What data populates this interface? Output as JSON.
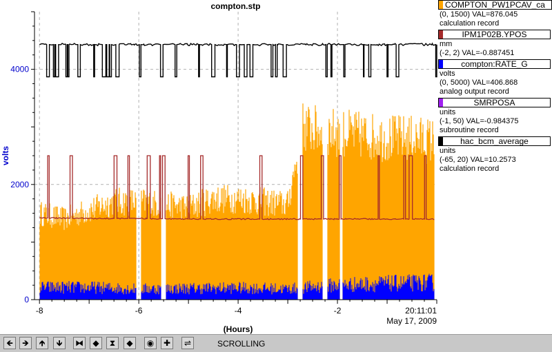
{
  "chart_data": {
    "type": "line",
    "title": "compton.stp",
    "xlabel": "(Hours)",
    "ylabel": "volts",
    "xlim": [
      -8.1,
      -0.0
    ],
    "ylim": [
      0,
      5000
    ],
    "x_ticks": [
      "-8",
      "-6",
      "-4",
      "-2"
    ],
    "y_ticks": [
      "0",
      "2000",
      "4000"
    ],
    "time_label": "20:11:01",
    "date_label": "May 17, 2009",
    "grid": true,
    "series": [
      {
        "name": "hac_bcm_average",
        "color": "#000000",
        "baseline": 4430,
        "low": 3870,
        "x": [
          -8.0,
          -7.5,
          -7.0,
          -6.5,
          -6.0,
          -5.5,
          -5.0,
          -4.5,
          -4.0,
          -3.5,
          -3.0,
          -2.5,
          -2.0,
          -1.5,
          -1.0,
          -0.5,
          -0.05
        ],
        "values": [
          4430,
          4430,
          4430,
          4430,
          4430,
          4430,
          4430,
          4430,
          4430,
          4430,
          4430,
          4430,
          4430,
          4430,
          4430,
          4430,
          4430
        ]
      },
      {
        "name": "IPM1P02B.YPOS",
        "color": "#a52a2a",
        "baseline": 1400,
        "high": 2500,
        "x": [
          -8.0,
          -7.0,
          -6.0,
          -5.0,
          -4.0,
          -3.0,
          -2.0,
          -1.0,
          -0.05
        ],
        "values": [
          1420,
          1410,
          1410,
          1400,
          1400,
          1400,
          1400,
          1400,
          1400
        ]
      },
      {
        "name": "COMPTON_PW1PCAV_ca",
        "color": "#ffa500",
        "x": [
          -8.0,
          -7.5,
          -7.0,
          -6.5,
          -6.0,
          -5.5,
          -5.0,
          -4.5,
          -4.0,
          -3.5,
          -3.0,
          -2.7,
          -2.5,
          -2.0,
          -1.5,
          -1.0,
          -0.5,
          -0.05
        ],
        "values": [
          1500,
          1400,
          1550,
          1700,
          1700,
          1650,
          1600,
          1750,
          1750,
          1700,
          1650,
          3000,
          2950,
          2900,
          2850,
          2800,
          2800,
          2750
        ]
      },
      {
        "name": "compton:RATE_G",
        "color": "#0000ff",
        "x": [
          -8.0,
          -7.0,
          -6.0,
          -5.0,
          -4.0,
          -3.0,
          -2.0,
          -1.0,
          -0.05
        ],
        "values": [
          250,
          250,
          220,
          230,
          240,
          220,
          300,
          330,
          350
        ]
      }
    ],
    "gaps": [
      [
        -6.05,
        -5.95
      ],
      [
        -5.55,
        -5.45
      ],
      [
        -2.8,
        -2.7
      ],
      [
        -2.3,
        -2.2
      ],
      [
        -1.95,
        -1.9
      ]
    ]
  },
  "legend": [
    {
      "name": "COMPTON_PW1PCAV_ca",
      "color": "#ffa500",
      "unit": "",
      "range_val": "(0, 1500) VAL=876.045",
      "record": "calculation record"
    },
    {
      "name": "IPM1P02B.YPOS",
      "color": "#a52a2a",
      "unit": "mm",
      "range_val": "(-2, 2) VAL=-0.887451",
      "record": ""
    },
    {
      "name": "compton:RATE_G",
      "color": "#0000ff",
      "unit": "volts",
      "range_val": "(0, 5000) VAL=406.868",
      "record": "analog output record"
    },
    {
      "name": "SMRPOSA",
      "color": "#a020f0",
      "unit": "units",
      "range_val": "(-1, 50) VAL=-0.984375",
      "record": "subroutine record"
    },
    {
      "name": "hac_bcm_average",
      "color": "#000000",
      "unit": "units",
      "range_val": "(-65, 20) VAL=10.2573",
      "record": "calculation record"
    }
  ],
  "toolbar": {
    "buttons": [
      {
        "name": "scroll-left-button",
        "icon": "arrow-left-icon",
        "glyph": "🡸"
      },
      {
        "name": "scroll-right-button",
        "icon": "arrow-right-icon",
        "glyph": "🡺"
      },
      {
        "name": "scroll-up-button",
        "icon": "arrow-up-icon",
        "glyph": "🡹"
      },
      {
        "name": "scroll-down-button",
        "icon": "arrow-down-icon",
        "glyph": "🡻"
      },
      {
        "name": "zoom-in-x-button",
        "icon": "zoom-in-x-icon",
        "glyph": "⧓"
      },
      {
        "name": "zoom-out-x-button",
        "icon": "zoom-out-x-icon",
        "glyph": "◆"
      },
      {
        "name": "zoom-in-y-button",
        "icon": "zoom-in-y-icon",
        "glyph": "⧗"
      },
      {
        "name": "zoom-out-y-button",
        "icon": "zoom-out-y-icon",
        "glyph": "◆"
      },
      {
        "name": "center-button",
        "icon": "target-icon",
        "glyph": "◉"
      },
      {
        "name": "add-button",
        "icon": "plus-icon",
        "glyph": "✚"
      },
      {
        "name": "scrolling-toggle-button",
        "icon": "scroll-mode-icon",
        "glyph": "⇌"
      }
    ],
    "mode_label": "SCROLLING"
  }
}
